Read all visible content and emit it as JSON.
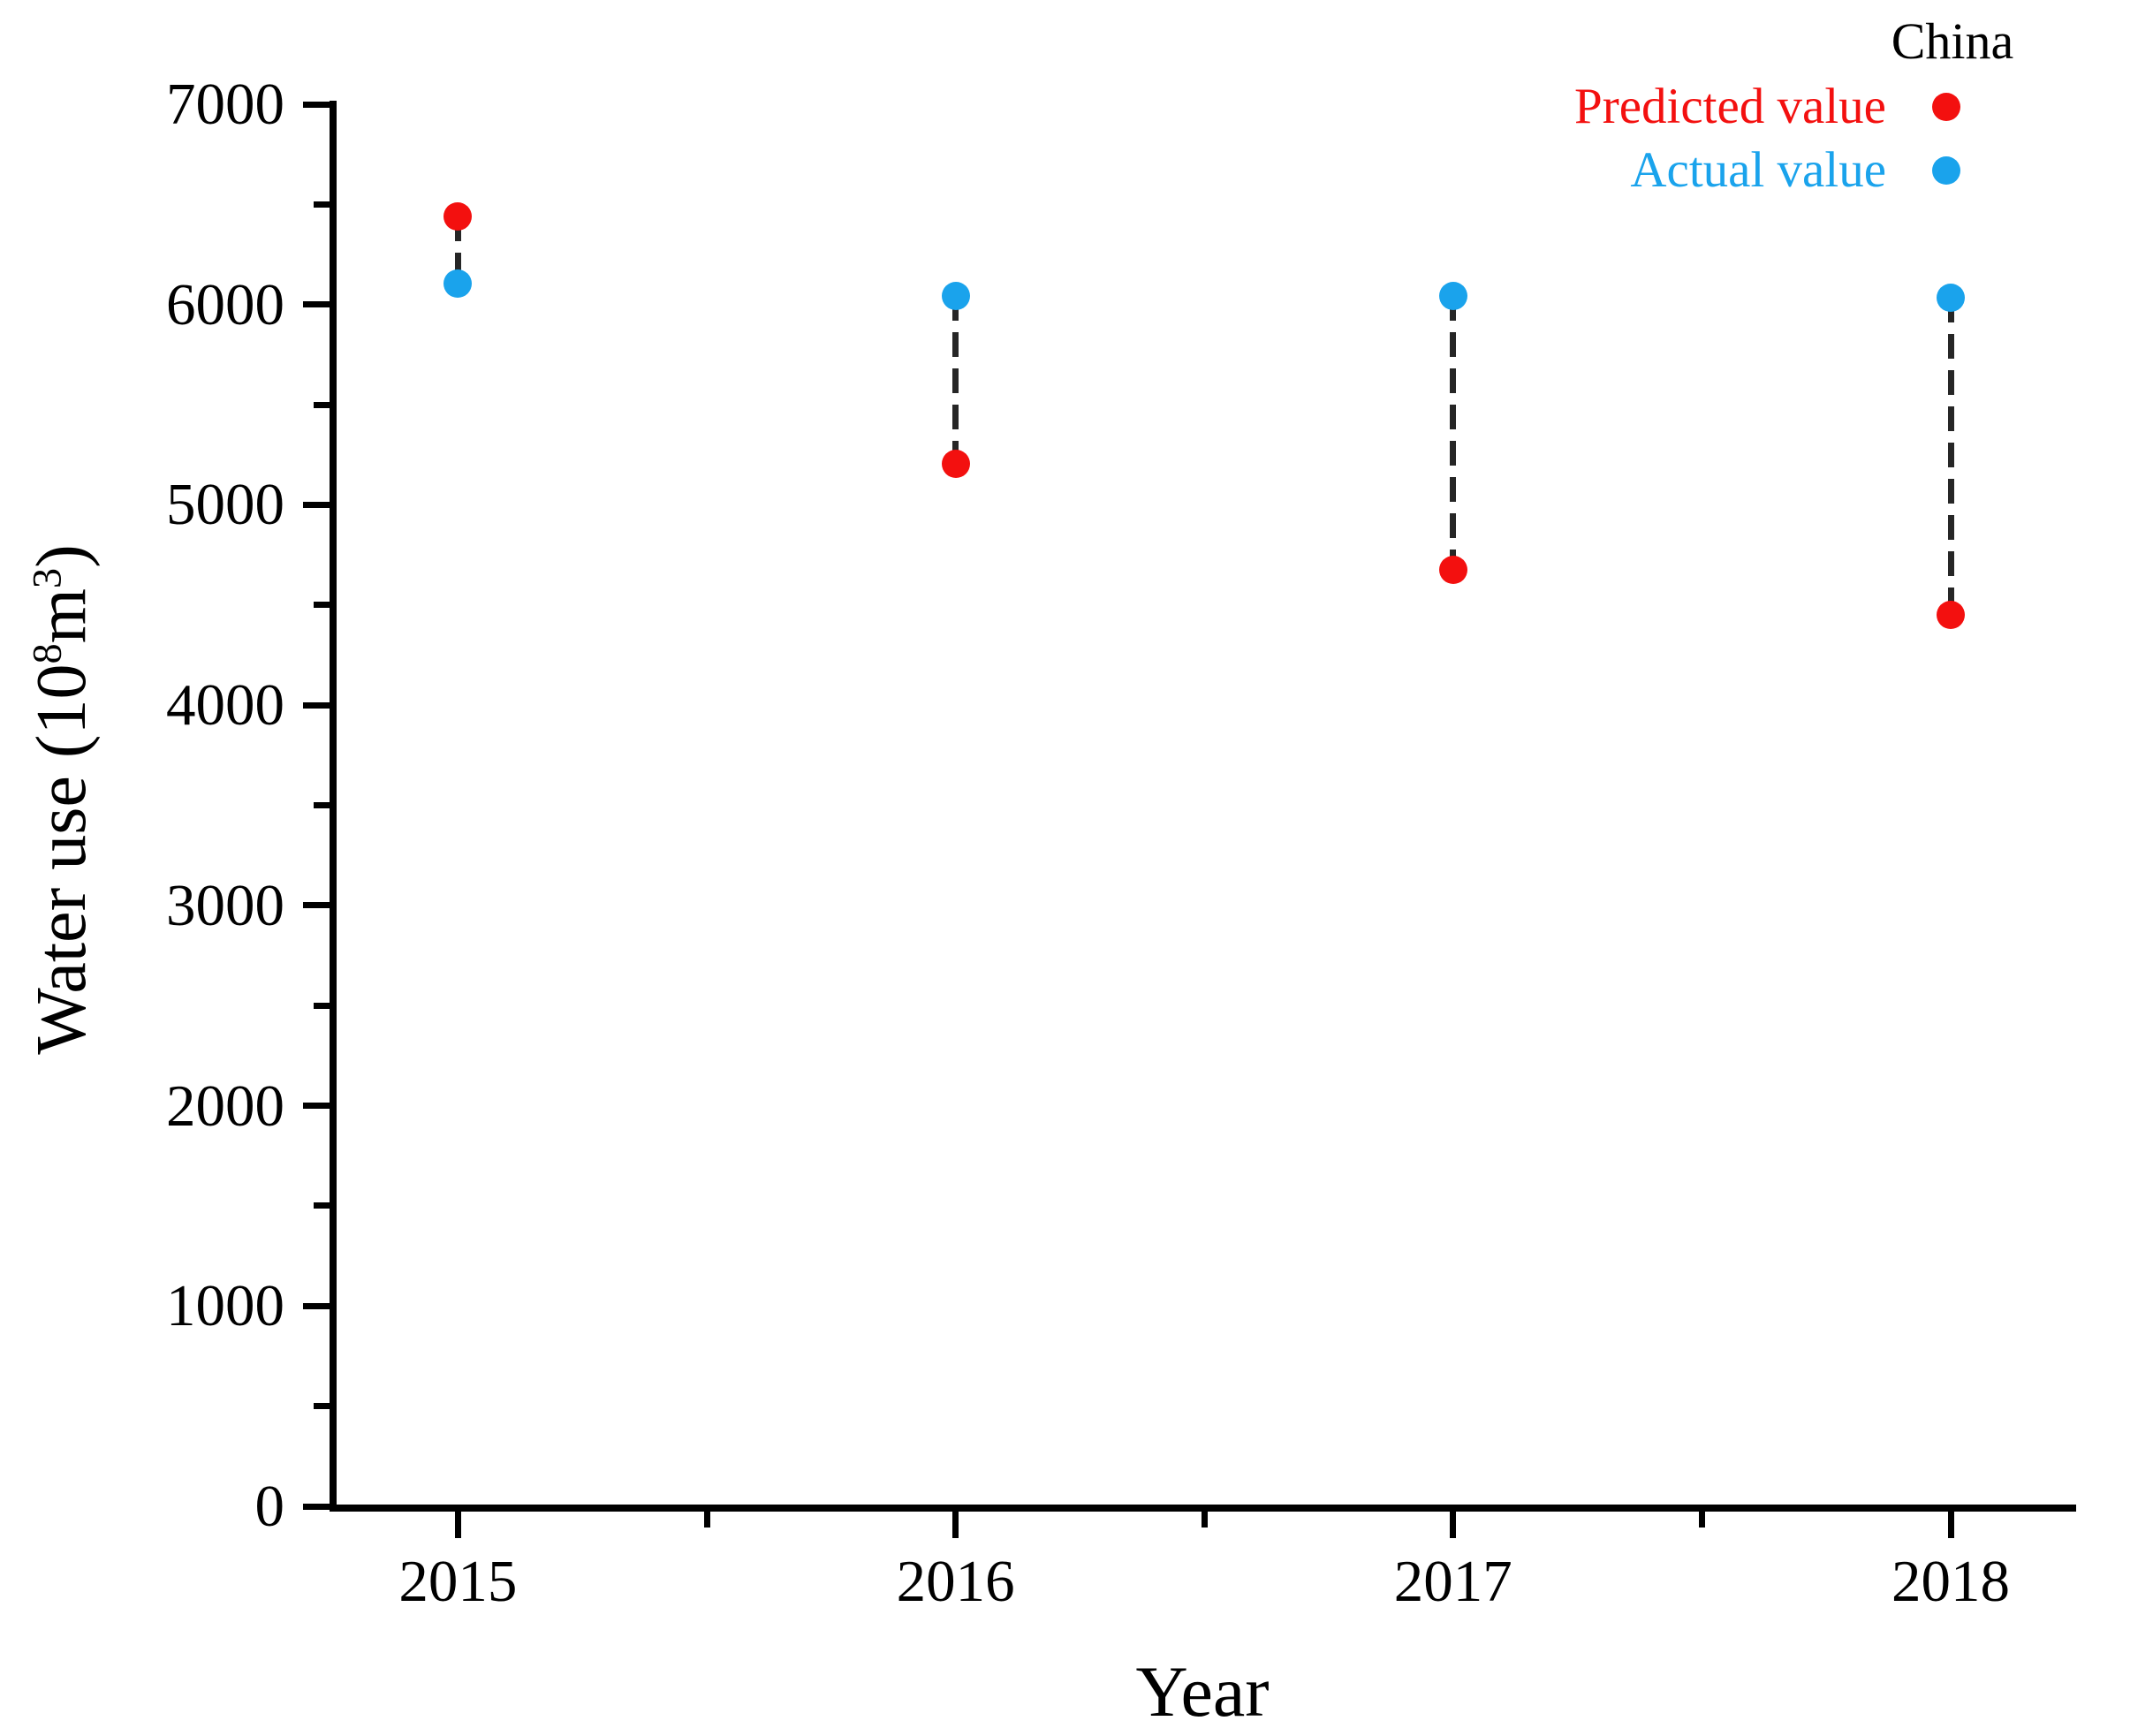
{
  "figure": {
    "background": "#ffffff"
  },
  "colors": {
    "predicted": "#f3100f",
    "actual": "#1aa3ec",
    "axis": "#000000",
    "connector": "#262626"
  },
  "legend": {
    "title": "China",
    "items": [
      {
        "label": "Predicted value",
        "color": "#f3100f",
        "series": "predicted"
      },
      {
        "label": "Actual value",
        "color": "#1aa3ec",
        "series": "actual"
      }
    ]
  },
  "chart_data": {
    "type": "scatter",
    "title": "China",
    "xlabel": "Year",
    "ylabel": "Water use (10^8 m^3)",
    "ylabel_parts": {
      "pre": "Water use (10",
      "sup1": "8",
      "mid": "m",
      "sup2": "3",
      "post": ")"
    },
    "categories": [
      "2015",
      "2016",
      "2017",
      "2018"
    ],
    "ylim": [
      0,
      7000
    ],
    "ytick_step": 1000,
    "yminor_step": 500,
    "y_tick_labels": [
      "0",
      "1000",
      "2000",
      "3000",
      "4000",
      "5000",
      "6000",
      "7000"
    ],
    "grid": false,
    "legend_position": "top-right",
    "marker": "filled-circle",
    "connector_style": "vertical-dashed-line-between-series",
    "series": [
      {
        "name": "Predicted value",
        "color": "#f3100f",
        "values": [
          6440,
          5205,
          4675,
          4450
        ]
      },
      {
        "name": "Actual value",
        "color": "#1aa3ec",
        "values": [
          6105,
          6045,
          6045,
          6035
        ]
      }
    ]
  }
}
